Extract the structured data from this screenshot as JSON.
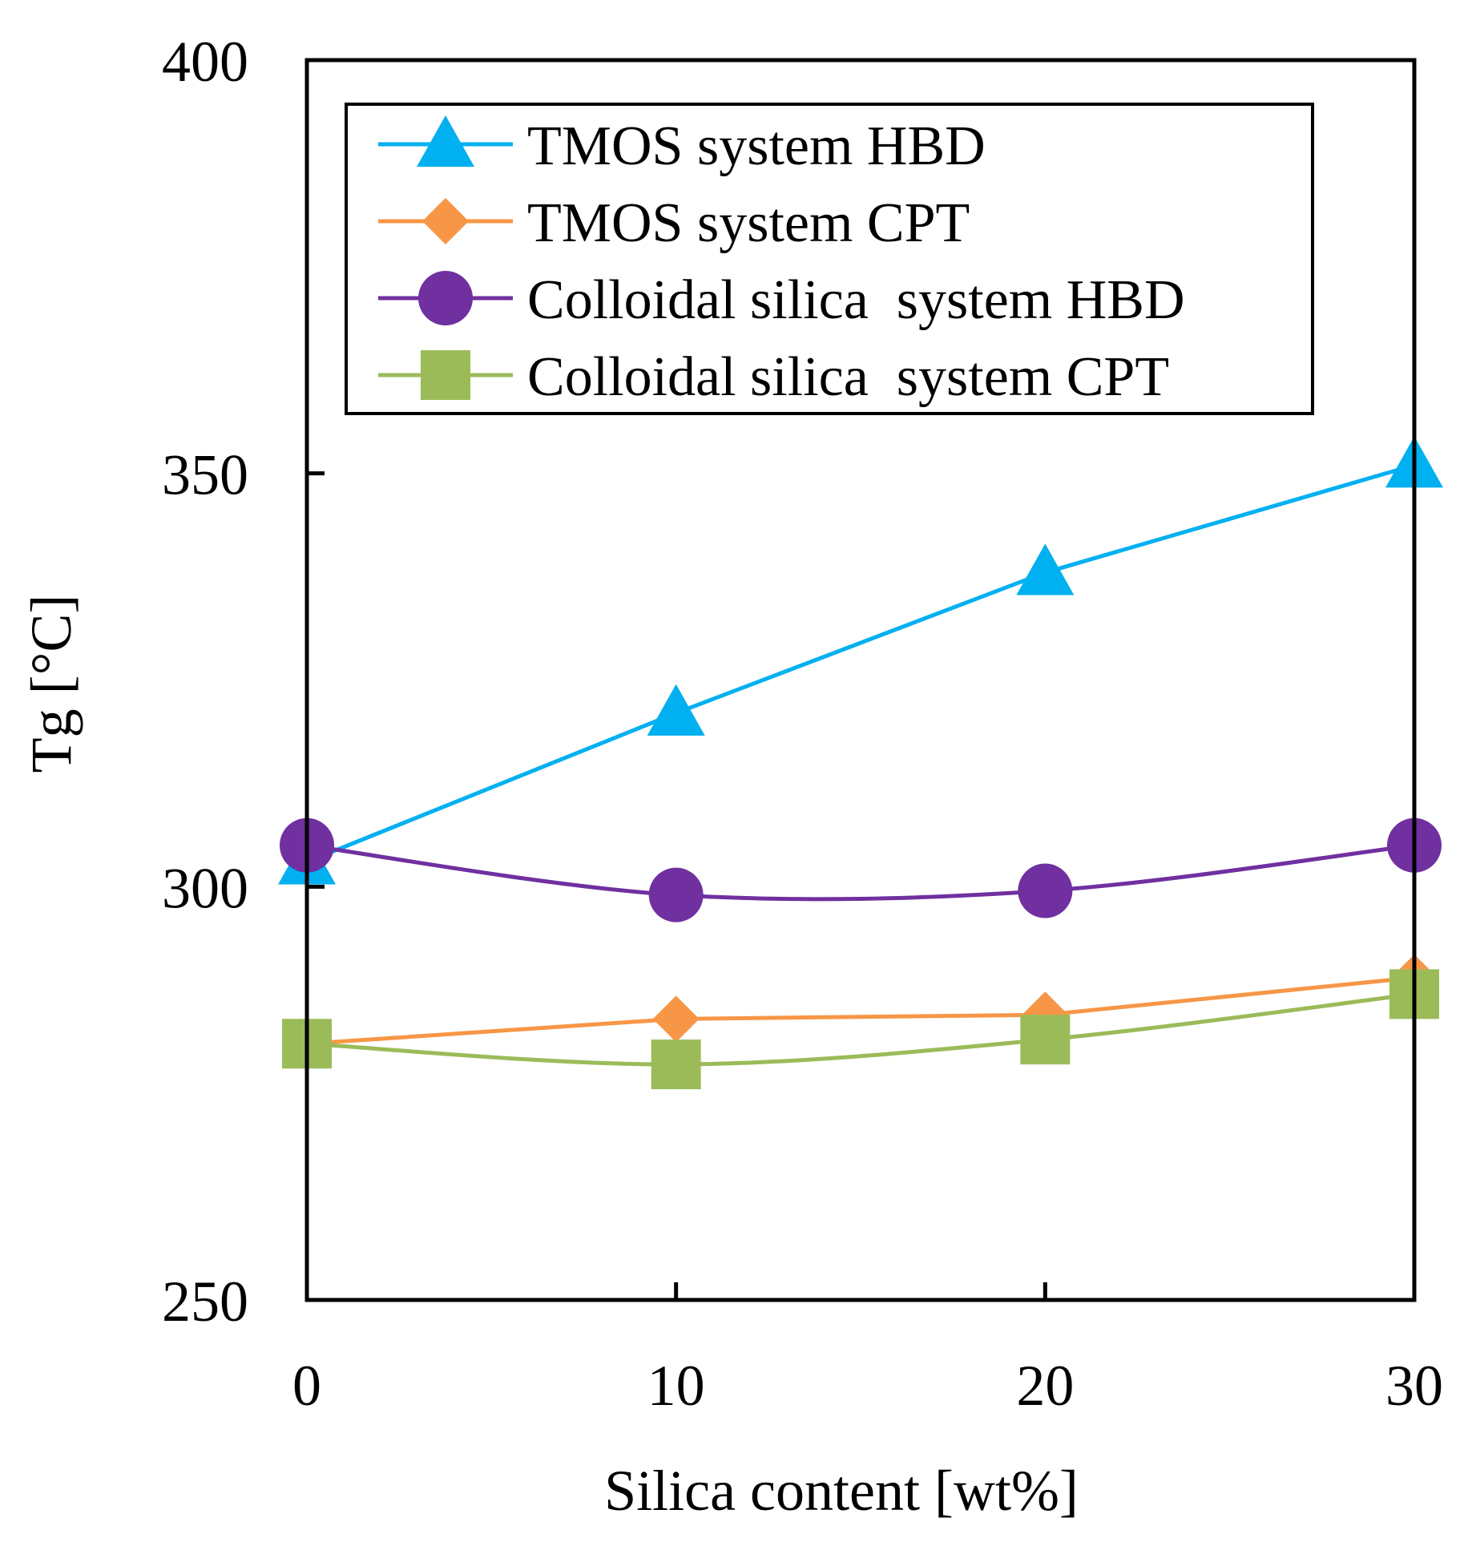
{
  "chart_data": {
    "type": "line",
    "title": "",
    "xlabel": "Silica content [wt%]",
    "ylabel": "Tg [°C]",
    "x": [
      0,
      10,
      20,
      30
    ],
    "xlim": [
      0,
      30
    ],
    "ylim": [
      250,
      400
    ],
    "xticks": [
      0,
      10,
      20,
      30
    ],
    "yticks": [
      250,
      300,
      350,
      400
    ],
    "grid": false,
    "legend_position": "top-right",
    "series": [
      {
        "name": "TMOS system HBD",
        "marker": "triangle",
        "color": "#00b0f0",
        "values": [
          303,
          321,
          338,
          351
        ],
        "curve": "linear"
      },
      {
        "name": "TMOS system CPT",
        "marker": "diamond",
        "color": "#f79646",
        "values": [
          281,
          284,
          284.5,
          289
        ],
        "curve": "linear"
      },
      {
        "name": "Colloidal silica  system HBD",
        "marker": "circle",
        "color": "#7030a0",
        "values": [
          305,
          299,
          299.5,
          305
        ],
        "curve": "smooth"
      },
      {
        "name": "Colloidal silica  system CPT",
        "marker": "square",
        "color": "#9bbb59",
        "values": [
          281,
          278.5,
          281.5,
          287
        ],
        "curve": "smooth"
      }
    ]
  }
}
